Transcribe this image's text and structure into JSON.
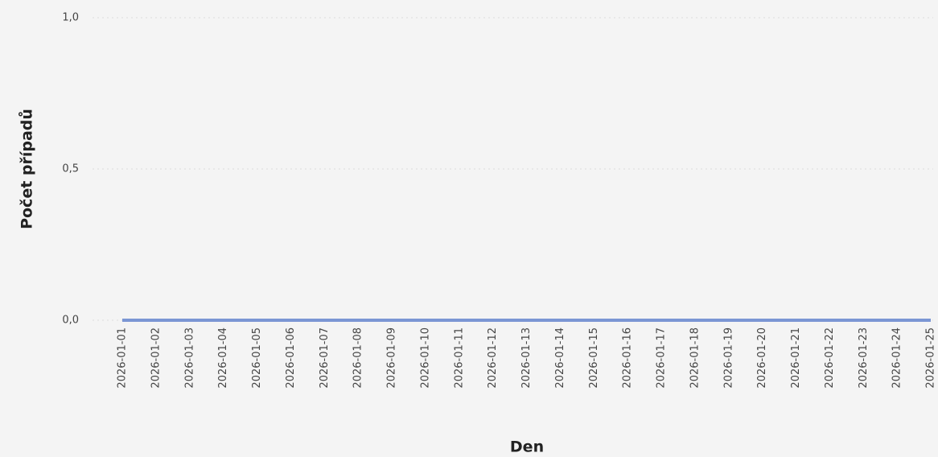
{
  "chart_data": {
    "type": "line",
    "x_label": "Den",
    "y_label": "Počet případů",
    "categories": [
      "2026-01-01",
      "2026-01-02",
      "2026-01-03",
      "2026-01-04",
      "2026-01-05",
      "2026-01-06",
      "2026-01-07",
      "2026-01-08",
      "2026-01-09",
      "2026-01-10",
      "2026-01-11",
      "2026-01-12",
      "2026-01-13",
      "2026-01-14",
      "2026-01-15",
      "2026-01-16",
      "2026-01-17",
      "2026-01-18",
      "2026-01-19",
      "2026-01-20",
      "2026-01-21",
      "2026-01-22",
      "2026-01-23",
      "2026-01-24",
      "2026-01-25"
    ],
    "values": [
      0,
      0,
      0,
      0,
      0,
      0,
      0,
      0,
      0,
      0,
      0,
      0,
      0,
      0,
      0,
      0,
      0,
      0,
      0,
      0,
      0,
      0,
      0,
      0,
      0
    ],
    "color": "#7b96d4",
    "ylim": [
      0,
      1
    ],
    "yticks": [
      {
        "value": 0,
        "label": "0,0"
      },
      {
        "value": 0.5,
        "label": "0,5"
      },
      {
        "value": 1,
        "label": "1,0"
      }
    ],
    "grid": true
  }
}
